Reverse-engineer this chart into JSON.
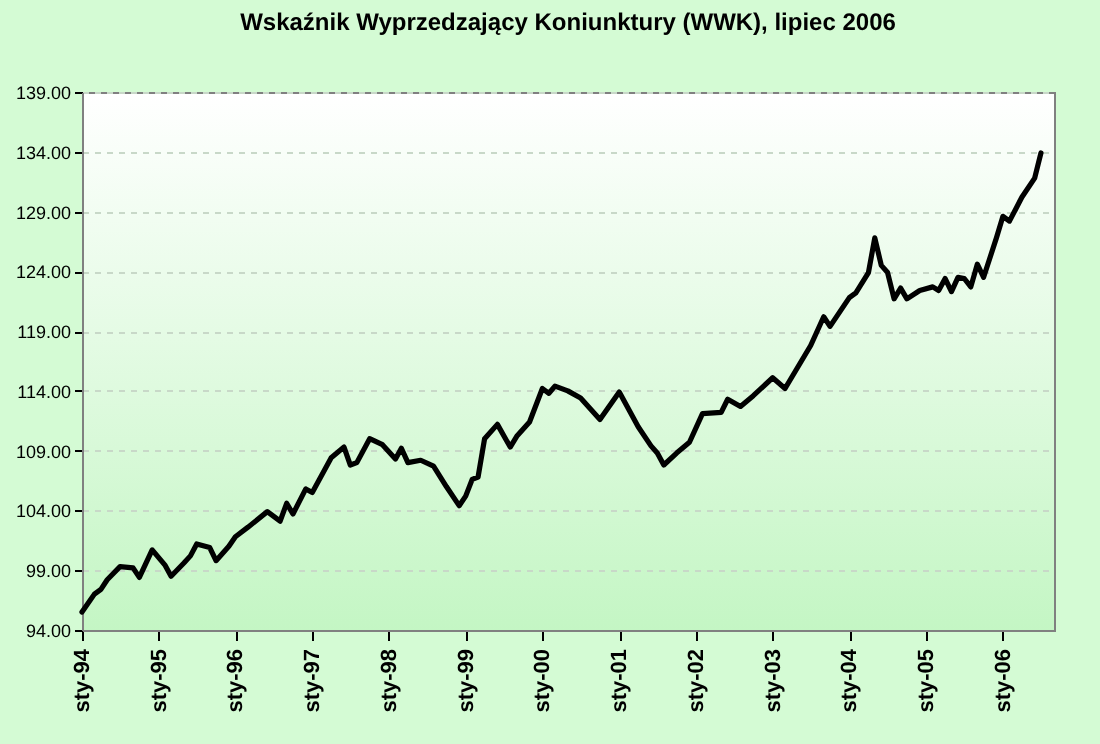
{
  "chart_data": {
    "type": "line",
    "title": "Wskaźnik Wyprzedzający Koniunktury (WWK), lipiec 2006",
    "x": [
      "1994-01",
      "1994-03",
      "1994-04",
      "1994-05",
      "1994-07",
      "1994-09",
      "1994-10",
      "1994-12",
      "1995-02",
      "1995-03",
      "1995-05",
      "1995-06",
      "1995-07",
      "1995-09",
      "1995-10",
      "1995-12",
      "1996-01",
      "1996-03",
      "1996-06",
      "1996-08",
      "1996-09",
      "1996-10",
      "1996-12",
      "1997-01",
      "1997-04",
      "1997-06",
      "1997-07",
      "1997-08",
      "1997-10",
      "1997-12",
      "1998-02",
      "1998-03",
      "1998-04",
      "1998-06",
      "1998-08",
      "1998-10",
      "1998-12",
      "1999-01",
      "1999-02",
      "1999-03",
      "1999-04",
      "1999-06",
      "1999-08",
      "1999-09",
      "1999-11",
      "2000-01",
      "2000-02",
      "2000-03",
      "2000-05",
      "2000-07",
      "2000-10",
      "2001-01",
      "2001-04",
      "2001-06",
      "2001-07",
      "2001-08",
      "2001-10",
      "2001-12",
      "2002-02",
      "2002-05",
      "2002-06",
      "2002-08",
      "2002-10",
      "2003-01",
      "2003-03",
      "2003-05",
      "2003-07",
      "2003-09",
      "2003-10",
      "2004-01",
      "2004-02",
      "2004-04",
      "2004-05",
      "2004-06",
      "2004-07",
      "2004-08",
      "2004-09",
      "2004-10",
      "2004-12",
      "2005-02",
      "2005-03",
      "2005-04",
      "2005-05",
      "2005-06",
      "2005-07",
      "2005-08",
      "2005-09",
      "2005-10",
      "2005-12",
      "2006-01",
      "2006-02",
      "2006-04",
      "2006-06",
      "2006-07"
    ],
    "series": [
      {
        "color": "#000000",
        "values": [
          95.5,
          97.0,
          97.4,
          98.2,
          99.3,
          99.2,
          98.4,
          100.7,
          99.4,
          98.5,
          99.6,
          100.2,
          101.2,
          100.9,
          99.8,
          101.0,
          101.8,
          102.6,
          103.9,
          103.1,
          104.6,
          103.7,
          105.8,
          105.5,
          108.4,
          109.3,
          107.8,
          108.0,
          110.0,
          109.5,
          108.3,
          109.2,
          108.0,
          108.2,
          107.7,
          106.0,
          104.4,
          105.2,
          106.6,
          106.8,
          110.0,
          111.2,
          109.3,
          110.2,
          111.4,
          114.2,
          113.8,
          114.4,
          114.0,
          113.4,
          111.6,
          113.9,
          111.0,
          109.4,
          108.8,
          107.8,
          108.8,
          109.7,
          112.1,
          112.2,
          113.3,
          112.7,
          113.6,
          115.1,
          114.2,
          116.0,
          117.8,
          120.2,
          119.4,
          121.8,
          122.2,
          123.9,
          126.8,
          124.5,
          123.9,
          121.7,
          122.6,
          121.7,
          122.4,
          122.7,
          122.4,
          123.4,
          122.3,
          123.5,
          123.4,
          122.7,
          124.6,
          123.5,
          126.8,
          128.6,
          128.2,
          130.2,
          131.8,
          133.9
        ]
      }
    ],
    "xlim": [
      "1994-01",
      "2006-09"
    ],
    "ylim": [
      94,
      139
    ],
    "xticks": [
      {
        "value": "1994-01",
        "label": "sty-94"
      },
      {
        "value": "1995-01",
        "label": "sty-95"
      },
      {
        "value": "1996-01",
        "label": "sty-96"
      },
      {
        "value": "1997-01",
        "label": "sty-97"
      },
      {
        "value": "1998-01",
        "label": "sty-98"
      },
      {
        "value": "1999-01",
        "label": "sty-99"
      },
      {
        "value": "2000-01",
        "label": "sty-00"
      },
      {
        "value": "2001-01",
        "label": "sty-01"
      },
      {
        "value": "2002-01",
        "label": "sty-02"
      },
      {
        "value": "2003-01",
        "label": "sty-03"
      },
      {
        "value": "2004-01",
        "label": "sty-04"
      },
      {
        "value": "2005-01",
        "label": "sty-05"
      },
      {
        "value": "2006-01",
        "label": "sty-06"
      }
    ],
    "yticks": [
      {
        "value": 94,
        "label": "94.00"
      },
      {
        "value": 99,
        "label": "99.00"
      },
      {
        "value": 104,
        "label": "104.00"
      },
      {
        "value": 109,
        "label": "109.00"
      },
      {
        "value": 114,
        "label": "114.00"
      },
      {
        "value": 119,
        "label": "119.00"
      },
      {
        "value": 124,
        "label": "124.00"
      },
      {
        "value": 129,
        "label": "129.00"
      },
      {
        "value": 134,
        "label": "134.00"
      },
      {
        "value": 139,
        "label": "139.00"
      }
    ],
    "grid": "y",
    "line_style": "solid"
  }
}
